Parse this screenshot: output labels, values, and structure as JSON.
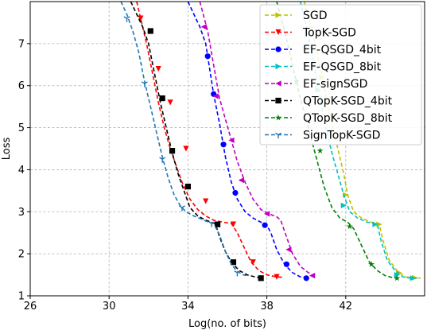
{
  "chart_data": {
    "type": "line",
    "xlabel": "Log(no. of bits)",
    "ylabel": "Loss",
    "xlim": [
      26,
      46
    ],
    "ylim": [
      1,
      8
    ],
    "xticks": [
      26,
      30,
      34,
      38,
      42
    ],
    "xtick_labels": [
      "26",
      "30",
      "34",
      "38",
      "42"
    ],
    "yticks": [
      1,
      2,
      3,
      4,
      5,
      6,
      7
    ],
    "ytick_labels": [
      "1",
      "2",
      "3",
      "4",
      "5",
      "6",
      "7"
    ],
    "grid": true,
    "grid_style": "dashed",
    "legend_position": "top-right",
    "series": [
      {
        "name": "SGD",
        "color": "#bfbf00",
        "marker": "triangle-right",
        "x": [
          39.9,
          40.4,
          40.9,
          41.3,
          41.7,
          41.9,
          42.1,
          42.4,
          42.8,
          43.3,
          43.7,
          43.9,
          44.2,
          44.6,
          45.0,
          45.4,
          45.8
        ],
        "y": [
          8.0,
          7.1,
          6.0,
          5.1,
          4.3,
          3.9,
          3.4,
          3.0,
          2.85,
          2.75,
          2.7,
          2.3,
          1.85,
          1.6,
          1.45,
          1.43,
          1.42
        ],
        "marker_x": [
          40.8,
          42.0,
          43.7,
          44.7,
          45.5
        ],
        "marker_y": [
          6.2,
          3.4,
          2.7,
          1.55,
          1.43
        ]
      },
      {
        "name": "TopK-SGD",
        "color": "#ff0000",
        "marker": "triangle-down",
        "x": [
          31.4,
          31.6,
          31.9,
          32.2,
          32.5,
          32.8,
          33.1,
          33.4,
          33.7,
          34.1,
          34.5,
          34.9,
          35.3,
          35.8,
          36.2,
          36.5,
          36.9,
          37.2,
          37.6,
          38.0,
          38.5,
          38.8
        ],
        "y": [
          8.0,
          7.6,
          7.0,
          6.3,
          5.6,
          5.0,
          4.5,
          4.1,
          3.7,
          3.3,
          3.05,
          2.9,
          2.8,
          2.75,
          2.72,
          2.5,
          2.1,
          1.8,
          1.6,
          1.5,
          1.45,
          1.44
        ],
        "marker_x": [
          31.6,
          32.5,
          33.1,
          33.9,
          34.9,
          36.3,
          37.3,
          38.5
        ],
        "marker_y": [
          7.6,
          6.4,
          5.6,
          4.5,
          3.25,
          2.7,
          1.8,
          1.45
        ]
      },
      {
        "name": "EF-QSGD_4bit",
        "color": "#0000ff",
        "marker": "circle",
        "x": [
          34.0,
          34.3,
          34.6,
          34.9,
          35.1,
          35.3,
          35.6,
          35.9,
          36.2,
          36.5,
          36.9,
          37.3,
          37.7,
          38.0,
          38.2,
          38.5,
          38.9,
          39.3,
          39.7,
          40.1
        ],
        "y": [
          8.0,
          7.7,
          7.4,
          7.0,
          6.4,
          5.8,
          5.1,
          4.3,
          3.7,
          3.3,
          3.0,
          2.85,
          2.75,
          2.68,
          2.5,
          2.1,
          1.75,
          1.55,
          1.45,
          1.42
        ],
        "marker_x": [
          35.0,
          35.3,
          35.8,
          36.4,
          37.9,
          39.0,
          40.0
        ],
        "marker_y": [
          6.7,
          5.8,
          4.6,
          3.45,
          2.68,
          1.75,
          1.42
        ]
      },
      {
        "name": "EF-QSGD_8bit",
        "color": "#00bfbf",
        "marker": "triangle-right",
        "x": [
          39.7,
          40.1,
          40.5,
          40.9,
          41.3,
          41.6,
          41.9,
          42.2,
          42.6,
          43.1,
          43.6,
          43.8,
          44.1,
          44.5,
          44.9,
          45.3,
          45.6
        ],
        "y": [
          8.0,
          7.2,
          6.2,
          5.2,
          4.4,
          3.9,
          3.4,
          3.0,
          2.85,
          2.75,
          2.7,
          2.3,
          1.85,
          1.6,
          1.45,
          1.42,
          1.42
        ],
        "marker_x": [
          40.6,
          41.9,
          43.5,
          44.6,
          45.4
        ],
        "marker_y": [
          5.9,
          3.15,
          2.7,
          1.5,
          1.42
        ]
      },
      {
        "name": "EF-signSGD",
        "color": "#bf00bf",
        "marker": "triangle-left",
        "x": [
          34.6,
          35.0,
          35.3,
          35.6,
          35.9,
          36.2,
          36.5,
          36.9,
          37.3,
          37.7,
          38.1,
          38.5,
          38.7,
          39.0,
          39.3,
          39.7,
          40.1,
          40.4
        ],
        "y": [
          8.0,
          7.3,
          6.5,
          5.7,
          5.2,
          4.7,
          4.2,
          3.7,
          3.3,
          3.05,
          2.95,
          2.88,
          2.8,
          2.4,
          2.0,
          1.7,
          1.55,
          1.48
        ],
        "marker_x": [
          34.8,
          35.4,
          36.2,
          36.7,
          38.0,
          39.1,
          40.3
        ],
        "marker_y": [
          7.4,
          5.75,
          4.7,
          3.75,
          2.95,
          2.1,
          1.48
        ]
      },
      {
        "name": "QTopK-SGD_4bit",
        "color": "#000000",
        "marker": "square",
        "x": [
          31.1,
          31.4,
          31.7,
          32.0,
          32.3,
          32.6,
          32.9,
          33.2,
          33.5,
          33.8,
          34.1,
          34.5,
          34.9,
          35.2,
          35.4,
          35.6,
          35.9,
          36.2,
          36.6,
          37.0,
          37.4,
          37.8
        ],
        "y": [
          8.0,
          7.7,
          7.4,
          7.0,
          6.3,
          5.6,
          5.0,
          4.4,
          3.9,
          3.5,
          3.1,
          2.9,
          2.8,
          2.75,
          2.7,
          2.4,
          2.05,
          1.8,
          1.6,
          1.5,
          1.45,
          1.42
        ],
        "marker_x": [
          32.1,
          32.7,
          33.2,
          34.0,
          35.5,
          36.3,
          37.7
        ],
        "marker_y": [
          7.3,
          5.7,
          4.45,
          3.6,
          2.7,
          1.8,
          1.42
        ]
      },
      {
        "name": "QTopK-SGD_8bit",
        "color": "#008000",
        "marker": "star",
        "x": [
          38.5,
          38.9,
          39.3,
          39.7,
          40.1,
          40.5,
          40.9,
          41.3,
          41.7,
          42.1,
          42.4,
          42.8,
          43.2,
          43.6,
          44.0,
          44.4,
          44.8
        ],
        "y": [
          8.0,
          7.3,
          6.5,
          5.7,
          5.0,
          4.3,
          3.6,
          3.1,
          2.85,
          2.75,
          2.6,
          2.2,
          1.8,
          1.6,
          1.48,
          1.43,
          1.42
        ],
        "marker_x": [
          39.5,
          40.7,
          42.2,
          43.3,
          44.6
        ],
        "marker_y": [
          6.1,
          4.45,
          2.65,
          1.75,
          1.42
        ]
      },
      {
        "name": "SignTopK-SGD",
        "color": "#1f77b4",
        "marker": "tri-down",
        "x": [
          30.6,
          30.9,
          31.2,
          31.5,
          31.8,
          32.1,
          32.4,
          32.7,
          33.0,
          33.3,
          33.6,
          33.9,
          34.3,
          34.7,
          35.0,
          35.3,
          35.6,
          35.9,
          36.2,
          36.5,
          36.8,
          37.0
        ],
        "y": [
          8.0,
          7.7,
          7.3,
          6.8,
          6.1,
          5.5,
          4.9,
          4.3,
          3.8,
          3.4,
          3.15,
          3.0,
          2.9,
          2.82,
          2.76,
          2.72,
          2.45,
          2.05,
          1.75,
          1.58,
          1.5,
          1.48
        ],
        "marker_x": [
          30.9,
          31.8,
          32.7,
          33.7,
          35.2,
          36.5
        ],
        "marker_y": [
          7.6,
          6.05,
          4.25,
          3.1,
          2.72,
          1.55
        ]
      }
    ]
  }
}
